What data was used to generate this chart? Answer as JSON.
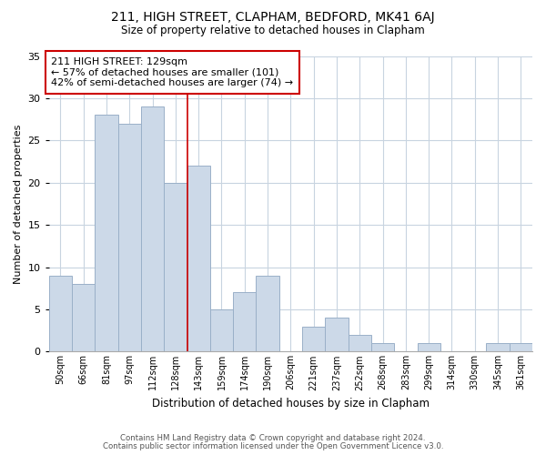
{
  "title": "211, HIGH STREET, CLAPHAM, BEDFORD, MK41 6AJ",
  "subtitle": "Size of property relative to detached houses in Clapham",
  "xlabel": "Distribution of detached houses by size in Clapham",
  "ylabel": "Number of detached properties",
  "categories": [
    "50sqm",
    "66sqm",
    "81sqm",
    "97sqm",
    "112sqm",
    "128sqm",
    "143sqm",
    "159sqm",
    "174sqm",
    "190sqm",
    "206sqm",
    "221sqm",
    "237sqm",
    "252sqm",
    "268sqm",
    "283sqm",
    "299sqm",
    "314sqm",
    "330sqm",
    "345sqm",
    "361sqm"
  ],
  "values": [
    9,
    8,
    28,
    27,
    29,
    20,
    22,
    5,
    7,
    9,
    0,
    3,
    4,
    2,
    1,
    0,
    1,
    0,
    0,
    1,
    1
  ],
  "bar_color": "#ccd9e8",
  "bar_edge_color": "#9ab0c8",
  "marker_index": 5,
  "marker_color": "#cc0000",
  "ylim": [
    0,
    35
  ],
  "yticks": [
    0,
    5,
    10,
    15,
    20,
    25,
    30,
    35
  ],
  "annotation_title": "211 HIGH STREET: 129sqm",
  "annotation_line1": "← 57% of detached houses are smaller (101)",
  "annotation_line2": "42% of semi-detached houses are larger (74) →",
  "annotation_box_color": "#ffffff",
  "annotation_box_edge": "#cc0000",
  "footer1": "Contains HM Land Registry data © Crown copyright and database right 2024.",
  "footer2": "Contains public sector information licensed under the Open Government Licence v3.0.",
  "background_color": "#ffffff",
  "grid_color": "#c8d4e0"
}
